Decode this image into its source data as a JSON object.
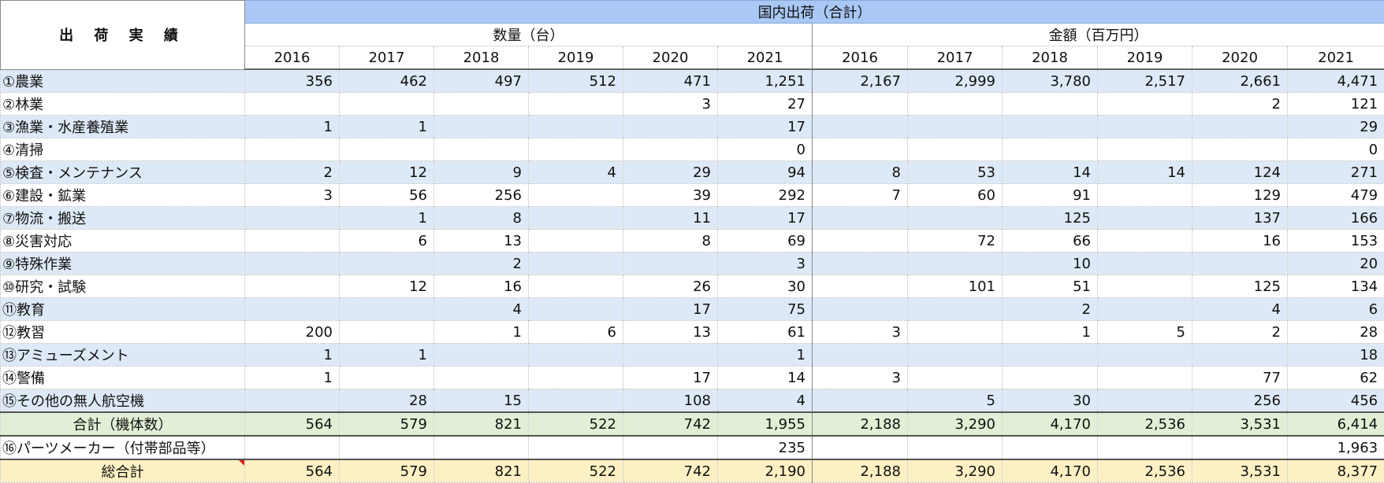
{
  "header": {
    "corner": "出 荷 実 績",
    "top": "国内出荷（合計）",
    "group_qty": "数量（台）",
    "group_amt": "金額（百万円）",
    "years": [
      "2016",
      "2017",
      "2018",
      "2019",
      "2020",
      "2021"
    ]
  },
  "rows": [
    {
      "label": "①農業",
      "qty": [
        "356",
        "462",
        "497",
        "512",
        "471",
        "1,251"
      ],
      "amt": [
        "2,167",
        "2,999",
        "3,780",
        "2,517",
        "2,661",
        "4,471"
      ]
    },
    {
      "label": "②林業",
      "qty": [
        "",
        "",
        "",
        "",
        "3",
        "27"
      ],
      "amt": [
        "",
        "",
        "",
        "",
        "2",
        "121"
      ]
    },
    {
      "label": "③漁業・水産養殖業",
      "qty": [
        "1",
        "1",
        "",
        "",
        "",
        "17"
      ],
      "amt": [
        "",
        "",
        "",
        "",
        "",
        "29"
      ]
    },
    {
      "label": "④清掃",
      "qty": [
        "",
        "",
        "",
        "",
        "",
        "0"
      ],
      "amt": [
        "",
        "",
        "",
        "",
        "",
        "0"
      ]
    },
    {
      "label": "⑤検査・メンテナンス",
      "qty": [
        "2",
        "12",
        "9",
        "4",
        "29",
        "94"
      ],
      "amt": [
        "8",
        "53",
        "14",
        "14",
        "124",
        "271"
      ]
    },
    {
      "label": "⑥建設・鉱業",
      "qty": [
        "3",
        "56",
        "256",
        "",
        "39",
        "292"
      ],
      "amt": [
        "7",
        "60",
        "91",
        "",
        "129",
        "479"
      ]
    },
    {
      "label": "⑦物流・搬送",
      "qty": [
        "",
        "1",
        "8",
        "",
        "11",
        "17"
      ],
      "amt": [
        "",
        "",
        "125",
        "",
        "137",
        "166"
      ]
    },
    {
      "label": "⑧災害対応",
      "qty": [
        "",
        "6",
        "13",
        "",
        "8",
        "69"
      ],
      "amt": [
        "",
        "72",
        "66",
        "",
        "16",
        "153"
      ]
    },
    {
      "label": "⑨特殊作業",
      "qty": [
        "",
        "",
        "2",
        "",
        "",
        "3"
      ],
      "amt": [
        "",
        "",
        "10",
        "",
        "",
        "20"
      ]
    },
    {
      "label": "⑩研究・試験",
      "qty": [
        "",
        "12",
        "16",
        "",
        "26",
        "30"
      ],
      "amt": [
        "",
        "101",
        "51",
        "",
        "125",
        "134"
      ]
    },
    {
      "label": "⑪教育",
      "qty": [
        "",
        "",
        "4",
        "",
        "17",
        "75"
      ],
      "amt": [
        "",
        "",
        "2",
        "",
        "4",
        "6"
      ]
    },
    {
      "label": "⑫教習",
      "qty": [
        "200",
        "",
        "1",
        "6",
        "13",
        "61"
      ],
      "amt": [
        "3",
        "",
        "1",
        "5",
        "2",
        "28"
      ]
    },
    {
      "label": "⑬アミューズメント",
      "qty": [
        "1",
        "1",
        "",
        "",
        "",
        "1"
      ],
      "amt": [
        "",
        "",
        "",
        "",
        "",
        "18"
      ]
    },
    {
      "label": "⑭警備",
      "qty": [
        "1",
        "",
        "",
        "",
        "17",
        "14"
      ],
      "amt": [
        "3",
        "",
        "",
        "",
        "77",
        "62"
      ]
    },
    {
      "label": "⑮その他の無人航空機",
      "qty": [
        "",
        "28",
        "15",
        "",
        "108",
        "4"
      ],
      "amt": [
        "",
        "5",
        "30",
        "",
        "256",
        "456"
      ]
    }
  ],
  "subtotal": {
    "label": "合計（機体数）",
    "qty": [
      "564",
      "579",
      "821",
      "522",
      "742",
      "1,955"
    ],
    "amt": [
      "2,188",
      "3,290",
      "4,170",
      "2,536",
      "3,531",
      "6,414"
    ]
  },
  "parts": {
    "label": "⑯パーツメーカー（付帯部品等）",
    "qty": [
      "",
      "",
      "",
      "",
      "",
      "235"
    ],
    "amt": [
      "",
      "",
      "",
      "",
      "",
      "1,963"
    ]
  },
  "grand": {
    "label": "総合計",
    "qty": [
      "564",
      "579",
      "821",
      "522",
      "742",
      "2,190"
    ],
    "amt": [
      "2,188",
      "3,290",
      "4,170",
      "2,536",
      "3,531",
      "8,377"
    ]
  },
  "colors": {
    "top_header": "#a9c8f5",
    "band": "#dde9f6",
    "subtotal": "#e1efd6",
    "grand": "#fdf0c4"
  }
}
